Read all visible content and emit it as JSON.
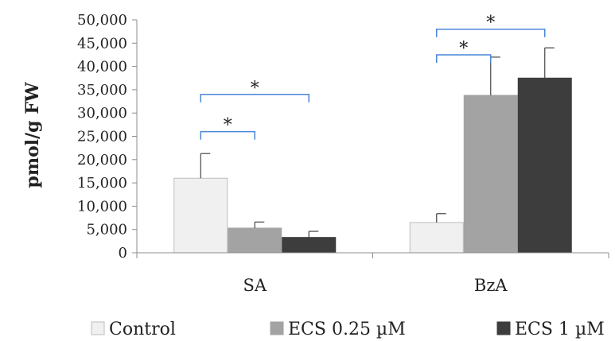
{
  "chart_data": {
    "type": "bar",
    "title": "",
    "ylabel": "pmol/g FW",
    "xlabel": "",
    "ylim": [
      0,
      50000
    ],
    "ytick_step": 5000,
    "ytick_labels": [
      "0",
      "5,000",
      "10,000",
      "15,000",
      "20,000",
      "25,000",
      "30,000",
      "35,000",
      "40,000",
      "45,000",
      "50,000"
    ],
    "categories": [
      "SA",
      "BzA"
    ],
    "series": [
      {
        "name": "Control",
        "values": [
          16000,
          6500
        ],
        "errors": [
          5300,
          1900
        ],
        "color": "#f0f0f0",
        "stroke": "#bdbdbd"
      },
      {
        "name": "ECS 0.25 µM",
        "values": [
          5300,
          33800
        ],
        "errors": [
          1300,
          8200
        ],
        "color": "#a3a3a3",
        "stroke": "#a3a3a3"
      },
      {
        "name": "ECS 1 µM",
        "values": [
          3300,
          37500
        ],
        "errors": [
          1300,
          6500
        ],
        "color": "#3d3d3d",
        "stroke": "#3d3d3d"
      }
    ],
    "significance": [
      {
        "category": 0,
        "from": 0,
        "to": 1,
        "y": 26000,
        "label": "*"
      },
      {
        "category": 0,
        "from": 0,
        "to": 2,
        "y": 34000,
        "label": "*"
      },
      {
        "category": 1,
        "from": 0,
        "to": 1,
        "y": 42500,
        "label": "*"
      },
      {
        "category": 1,
        "from": 0,
        "to": 2,
        "y": 48000,
        "label": "*"
      }
    ],
    "bracket_color": "#4a86d8",
    "grid": false,
    "legend_position": "bottom"
  }
}
